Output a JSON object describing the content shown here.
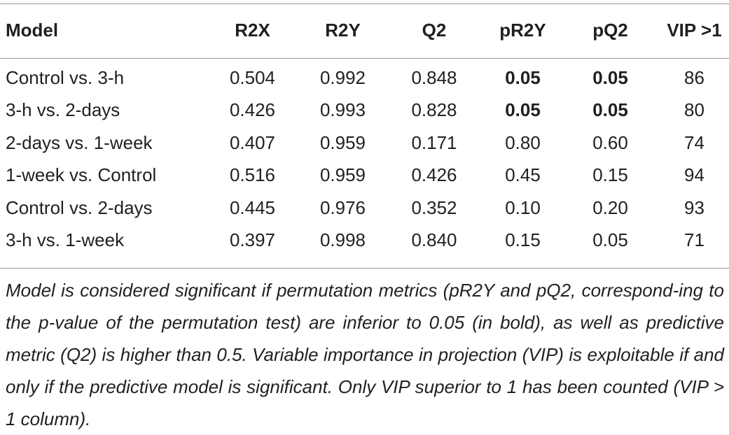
{
  "table": {
    "headers": [
      "Model",
      "R2X",
      "R2Y",
      "Q2",
      "pR2Y",
      "pQ2",
      "VIP >1"
    ],
    "rows": [
      [
        "Control vs. 3-h",
        "0.504",
        "0.992",
        "0.848",
        "0.05",
        "0.05",
        "86"
      ],
      [
        "3-h vs. 2-days",
        "0.426",
        "0.993",
        "0.828",
        "0.05",
        "0.05",
        "80"
      ],
      [
        "2-days vs. 1-week",
        "0.407",
        "0.959",
        "0.171",
        "0.80",
        "0.60",
        "74"
      ],
      [
        "1-week vs. Control",
        "0.516",
        "0.959",
        "0.426",
        "0.45",
        "0.15",
        "94"
      ],
      [
        "Control vs. 2-days",
        "0.445",
        "0.976",
        "0.352",
        "0.10",
        "0.20",
        "93"
      ],
      [
        "3-h vs. 1-week",
        "0.397",
        "0.998",
        "0.840",
        "0.15",
        "0.05",
        "71"
      ]
    ],
    "bold_cells": [
      [
        0,
        4
      ],
      [
        0,
        5
      ],
      [
        1,
        4
      ],
      [
        1,
        5
      ]
    ]
  },
  "footnote": "Model is considered significant if permutation metrics (pR2Y and pQ2, correspond-ing to the p-value of the permutation test) are inferior to 0.05 (in bold), as well as predictive metric (Q2) is higher than 0.5. Variable importance in projection (VIP) is exploitable if and only if the predictive model is significant. Only VIP superior to 1 has been counted (VIP > 1 column)."
}
